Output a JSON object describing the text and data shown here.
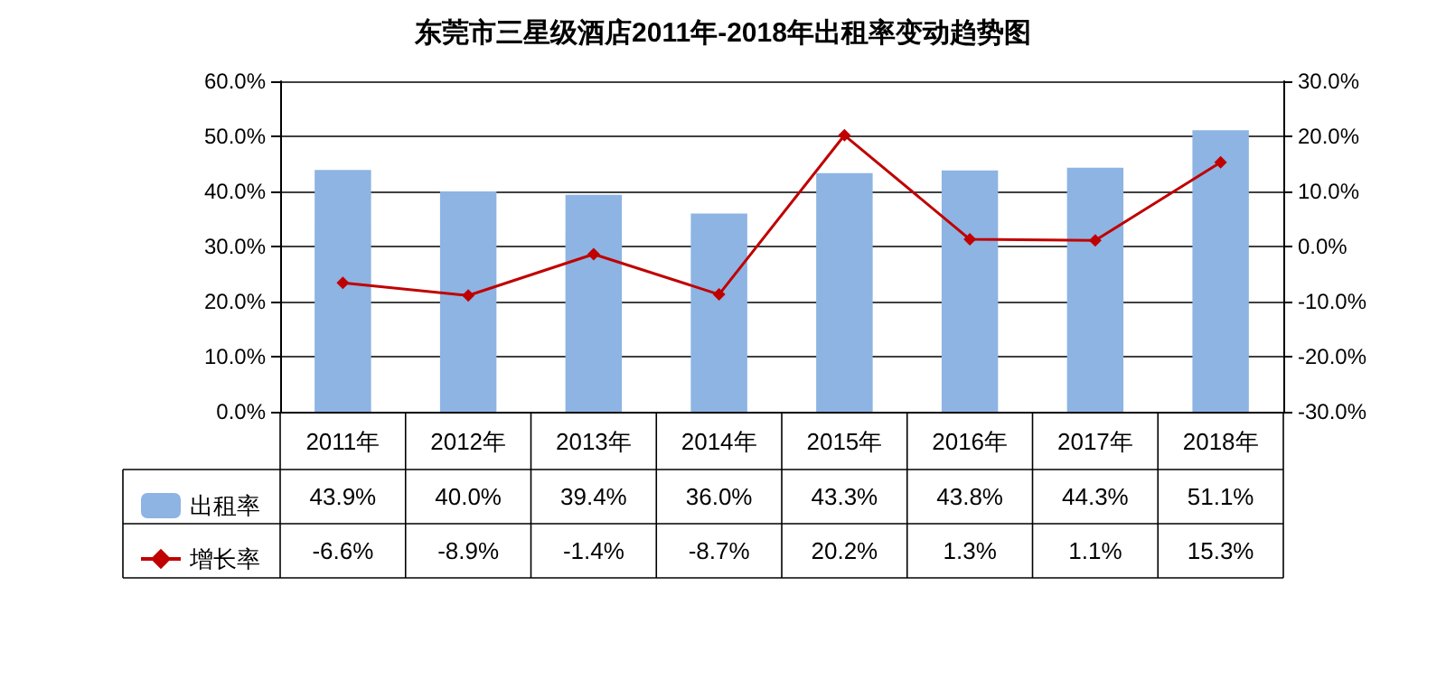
{
  "chart_data": {
    "type": "bar",
    "title": "东莞市三星级酒店2011年-2018年出租率变动趋势图",
    "categories": [
      "2011年",
      "2012年",
      "2013年",
      "2014年",
      "2015年",
      "2016年",
      "2017年",
      "2018年"
    ],
    "series": [
      {
        "name": "出租率",
        "color": "#8db4e2",
        "values": [
          43.9,
          40.0,
          39.4,
          36.0,
          43.3,
          43.8,
          44.3,
          51.1
        ],
        "value_labels": [
          "43.9%",
          "40.0%",
          "39.4%",
          "36.0%",
          "43.3%",
          "43.8%",
          "44.3%",
          "51.1%"
        ]
      },
      {
        "name": "增长率",
        "type": "line",
        "axis": "y2",
        "color": "#c00000",
        "marker": "diamond",
        "values": [
          -6.6,
          -8.9,
          -1.4,
          -8.7,
          20.2,
          1.3,
          1.1,
          15.3
        ],
        "value_labels": [
          "-6.6%",
          "-8.9%",
          "-1.4%",
          "-8.7%",
          "20.2%",
          "1.3%",
          "1.1%",
          "15.3%"
        ]
      }
    ],
    "ylim": [
      0,
      60
    ],
    "yticks": [
      {
        "value": 0,
        "label": "0.0%"
      },
      {
        "value": 10,
        "label": "10.0%"
      },
      {
        "value": 20,
        "label": "20.0%"
      },
      {
        "value": 30,
        "label": "30.0%"
      },
      {
        "value": 40,
        "label": "40.0%"
      },
      {
        "value": 50,
        "label": "50.0%"
      },
      {
        "value": 60,
        "label": "60.0%"
      }
    ],
    "y2lim": [
      -30,
      30
    ],
    "y2ticks": [
      {
        "value": -30,
        "label": "-30.0%"
      },
      {
        "value": -20,
        "label": "-20.0%"
      },
      {
        "value": -10,
        "label": "-10.0%"
      },
      {
        "value": 0,
        "label": "0.0%"
      },
      {
        "value": 10,
        "label": "10.0%"
      },
      {
        "value": 20,
        "label": "20.0%"
      },
      {
        "value": 30,
        "label": "30.0%"
      }
    ],
    "grid": "y",
    "legend": "bottom left"
  }
}
